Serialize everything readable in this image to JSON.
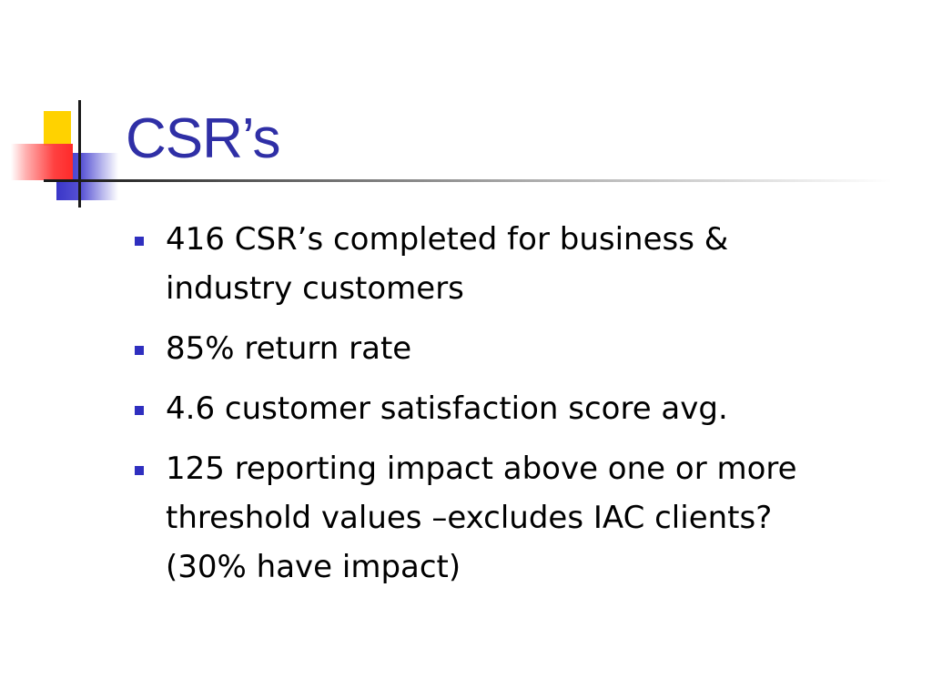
{
  "slide": {
    "title": "CSR’s",
    "bullets": [
      "416 CSR’s completed for business & industry customers",
      "85% return rate",
      "4.6 customer satisfaction score avg.",
      "125 reporting impact above one or more threshold values –excludes IAC clients? (30% have impact)"
    ]
  },
  "colors": {
    "title": "#2f2fa6",
    "bullet_marker": "#2f2fbf",
    "logo_yellow": "#ffd200",
    "logo_blue": "#3a36c8",
    "logo_red": "#ff2a2a"
  },
  "icons": {
    "logo": "decorative-color-blocks-icon",
    "bullet": "square-bullet-icon"
  }
}
